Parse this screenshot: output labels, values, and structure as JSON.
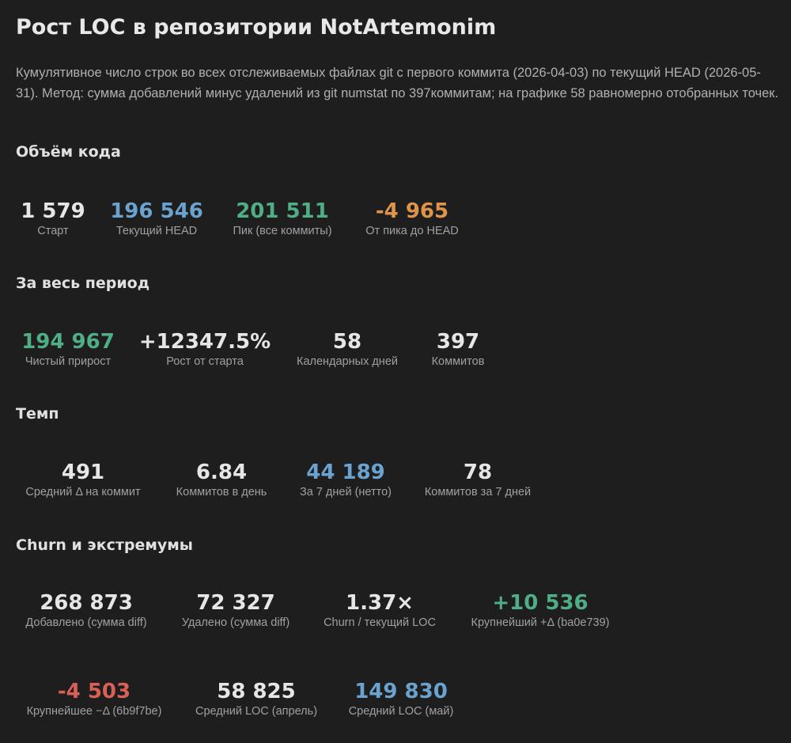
{
  "header": {
    "title": "Рост LOC в репозитории NotArtemonim",
    "description": "Кумулятивное число строк во всех отслеживаемых файлах git с первого коммита (2026-04-03) по текущий HEAD (2026-05-31). Метод: сумма добавлений минус удалений из git numstat по 397коммитам; на графике 58 равномерно отобранных точек."
  },
  "colors": {
    "background": "#1e1e1e",
    "neutral": "#e6e6e6",
    "blue": "#6aa3cf",
    "green": "#4fae85",
    "orange": "#e0944a",
    "red": "#d95f57"
  },
  "sections": {
    "volume": {
      "title": "Объём кода",
      "stats": [
        {
          "value": "1 579",
          "label": "Старт"
        },
        {
          "value": "196 546",
          "label": "Текущий HEAD"
        },
        {
          "value": "201 511",
          "label": "Пик (все коммиты)"
        },
        {
          "value": "-4 965",
          "label": "От пика до HEAD"
        }
      ]
    },
    "period": {
      "title": "За весь период",
      "stats": [
        {
          "value": "194 967",
          "label": "Чистый прирост"
        },
        {
          "value": "+12347.5%",
          "label": "Рост от старта"
        },
        {
          "value": "58",
          "label": "Календарных дней"
        },
        {
          "value": "397",
          "label": "Коммитов"
        }
      ]
    },
    "pace": {
      "title": "Темп",
      "stats": [
        {
          "value": "491",
          "label": "Средний Δ на коммит"
        },
        {
          "value": "6.84",
          "label": "Коммитов в день"
        },
        {
          "value": "44 189",
          "label": "За 7 дней (нетто)"
        },
        {
          "value": "78",
          "label": "Коммитов за 7 дней"
        }
      ]
    },
    "churn": {
      "title": "Churn и экстремумы",
      "stats": [
        {
          "value": "268 873",
          "label": "Добавлено (сумма diff)"
        },
        {
          "value": "72 327",
          "label": "Удалено (сумма diff)"
        },
        {
          "value": "1.37×",
          "label": "Churn / текущий LOC"
        },
        {
          "value": "+10 536",
          "label": "Крупнейший +Δ (ba0e739)"
        },
        {
          "value": "-4 503",
          "label": "Крупнейшее −Δ (6b9f7be)"
        },
        {
          "value": "58 825",
          "label": "Средний LOC (апрель)"
        },
        {
          "value": "149 830",
          "label": "Средний LOC (май)"
        }
      ]
    }
  }
}
